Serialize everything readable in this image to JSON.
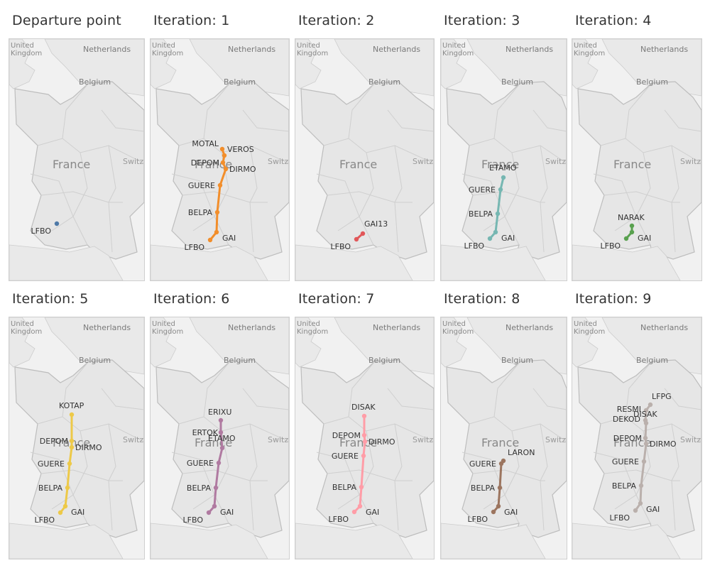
{
  "map_labels": {
    "united_kingdom": "United\nKingdom",
    "netherlands": "Netherlands",
    "belgium": "Belgium",
    "france": "France",
    "switzerland": "Switz"
  },
  "panels": [
    {
      "title": "Departure point",
      "color": "#4e79a7",
      "points": [
        {
          "name": "LFBO",
          "x": 67,
          "y": 260
        }
      ],
      "connect": false
    },
    {
      "title": "Iteration: 1",
      "color": "#f28e2b",
      "points": [
        {
          "name": "MOTAL",
          "x": 101,
          "y": 155
        },
        {
          "name": "VEROS",
          "x": 104,
          "y": 164
        },
        {
          "name": "DEPOM",
          "x": 102,
          "y": 174
        },
        {
          "name": "DIRMO",
          "x": 106,
          "y": 183
        },
        {
          "name": "GUERE",
          "x": 98,
          "y": 206
        },
        {
          "name": "BELPA",
          "x": 94,
          "y": 244
        },
        {
          "name": "GAI",
          "x": 93,
          "y": 272
        },
        {
          "name": "LFBO",
          "x": 84,
          "y": 283
        }
      ],
      "connect": true
    },
    {
      "title": "Iteration: 2",
      "color": "#e15759",
      "points": [
        {
          "name": "GAI13",
          "x": 95,
          "y": 274
        },
        {
          "name": "LFBO",
          "x": 86,
          "y": 282
        }
      ],
      "connect": true
    },
    {
      "title": "Iteration: 3",
      "color": "#76b7b2",
      "points": [
        {
          "name": "ETAMO",
          "x": 88,
          "y": 195
        },
        {
          "name": "GUERE",
          "x": 84,
          "y": 212
        },
        {
          "name": "BELPA",
          "x": 80,
          "y": 246
        },
        {
          "name": "GAI",
          "x": 77,
          "y": 272
        },
        {
          "name": "LFBO",
          "x": 69,
          "y": 281
        }
      ],
      "connect": true
    },
    {
      "title": "Iteration: 4",
      "color": "#59a14f",
      "points": [
        {
          "name": "NARAK",
          "x": 84,
          "y": 263
        },
        {
          "name": "GAI",
          "x": 84,
          "y": 272
        },
        {
          "name": "LFBO",
          "x": 76,
          "y": 281
        }
      ],
      "connect": true
    },
    {
      "title": "Iteration: 5",
      "color": "#edc948",
      "points": [
        {
          "name": "KOTAP",
          "x": 88,
          "y": 137
        },
        {
          "name": "DEPOM",
          "x": 88,
          "y": 174
        },
        {
          "name": "DIRMO",
          "x": 88,
          "y": 183
        },
        {
          "name": "GUERE",
          "x": 85,
          "y": 206
        },
        {
          "name": "BELPA",
          "x": 82,
          "y": 240
        },
        {
          "name": "GAI",
          "x": 79,
          "y": 266
        },
        {
          "name": "LFBO",
          "x": 72,
          "y": 275
        }
      ],
      "connect": true
    },
    {
      "title": "Iteration: 6",
      "color": "#b07aa1",
      "points": [
        {
          "name": "ERIXU",
          "x": 99,
          "y": 145
        },
        {
          "name": "ERTOK",
          "x": 99,
          "y": 162
        },
        {
          "name": "ETAMO",
          "x": 101,
          "y": 184
        },
        {
          "name": "GUERE",
          "x": 96,
          "y": 205
        },
        {
          "name": "BELPA",
          "x": 92,
          "y": 240
        },
        {
          "name": "GAI",
          "x": 90,
          "y": 266
        },
        {
          "name": "LFBO",
          "x": 82,
          "y": 275
        }
      ],
      "connect": true
    },
    {
      "title": "Iteration: 7",
      "color": "#ff9da7",
      "points": [
        {
          "name": "DISAK",
          "x": 97,
          "y": 139
        },
        {
          "name": "DEPOM",
          "x": 97,
          "y": 166
        },
        {
          "name": "DIRMO",
          "x": 98,
          "y": 175
        },
        {
          "name": "GUERE",
          "x": 96,
          "y": 195
        },
        {
          "name": "BELPA",
          "x": 93,
          "y": 239
        },
        {
          "name": "GAI",
          "x": 91,
          "y": 266
        },
        {
          "name": "LFBO",
          "x": 83,
          "y": 274
        }
      ],
      "connect": true
    },
    {
      "title": "Iteration: 8",
      "color": "#9c755f",
      "points": [
        {
          "name": "LARON",
          "x": 88,
          "y": 202
        },
        {
          "name": "GUERE",
          "x": 85,
          "y": 206
        },
        {
          "name": "BELPA",
          "x": 83,
          "y": 240
        },
        {
          "name": "GAI",
          "x": 81,
          "y": 266
        },
        {
          "name": "LFBO",
          "x": 74,
          "y": 274
        }
      ],
      "connect": true
    },
    {
      "title": "Iteration: 9",
      "color": "#bab0ac",
      "points": [
        {
          "name": "LFPG",
          "x": 110,
          "y": 123
        },
        {
          "name": "RESMI",
          "x": 104,
          "y": 131
        },
        {
          "name": "DEKOD",
          "x": 103,
          "y": 145
        },
        {
          "name": "DISAK",
          "x": 104,
          "y": 149
        },
        {
          "name": "DEPOM",
          "x": 103,
          "y": 170
        },
        {
          "name": "DIRMO",
          "x": 104,
          "y": 178
        },
        {
          "name": "GUERE",
          "x": 101,
          "y": 203
        },
        {
          "name": "BELPA",
          "x": 97,
          "y": 237
        },
        {
          "name": "GAI",
          "x": 96,
          "y": 262
        },
        {
          "name": "LFBO",
          "x": 89,
          "y": 272
        }
      ],
      "connect": true
    }
  ]
}
